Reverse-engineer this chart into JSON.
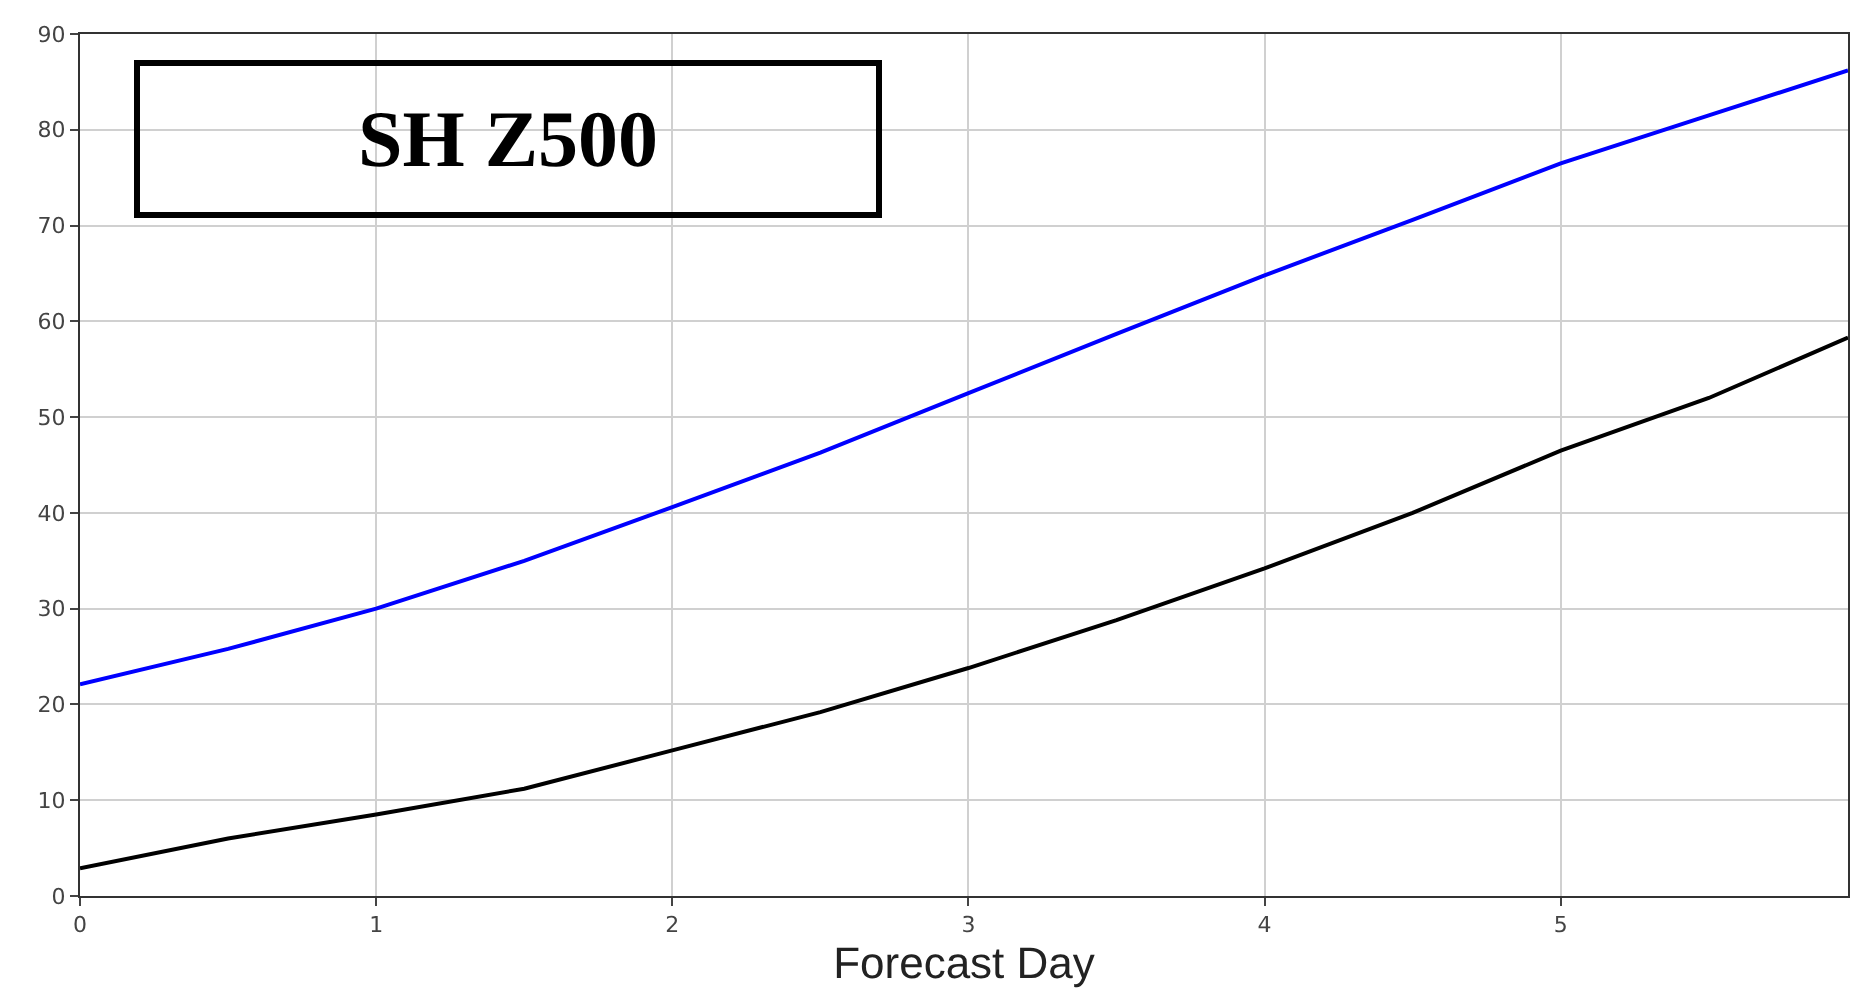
{
  "chart_data": {
    "type": "line",
    "xlabel": "Forecast Day",
    "annotations": [
      "SH Z500"
    ],
    "x": [
      0,
      0.5,
      1,
      1.5,
      2,
      2.5,
      3,
      3.5,
      4,
      4.5,
      5,
      5.5,
      5.97
    ],
    "series": [
      {
        "color": "#0000ff",
        "values": [
          22.1,
          25.8,
          30,
          35,
          40.6,
          46.3,
          52.5,
          58.7,
          64.8,
          70.6,
          76.5,
          81.5,
          86.2
        ]
      },
      {
        "color": "#000000",
        "values": [
          2.9,
          6,
          8.5,
          11.2,
          15.2,
          19.2,
          23.8,
          28.8,
          34.2,
          40,
          46.5,
          52,
          58.3
        ]
      }
    ],
    "xlim": [
      0,
      5.97
    ],
    "xticks": [
      0,
      1,
      2,
      3,
      4,
      5
    ],
    "ylim": [
      0,
      90
    ],
    "yticks": [
      0,
      10,
      20,
      30,
      40,
      50,
      60,
      70,
      80,
      90
    ],
    "grid": true
  }
}
